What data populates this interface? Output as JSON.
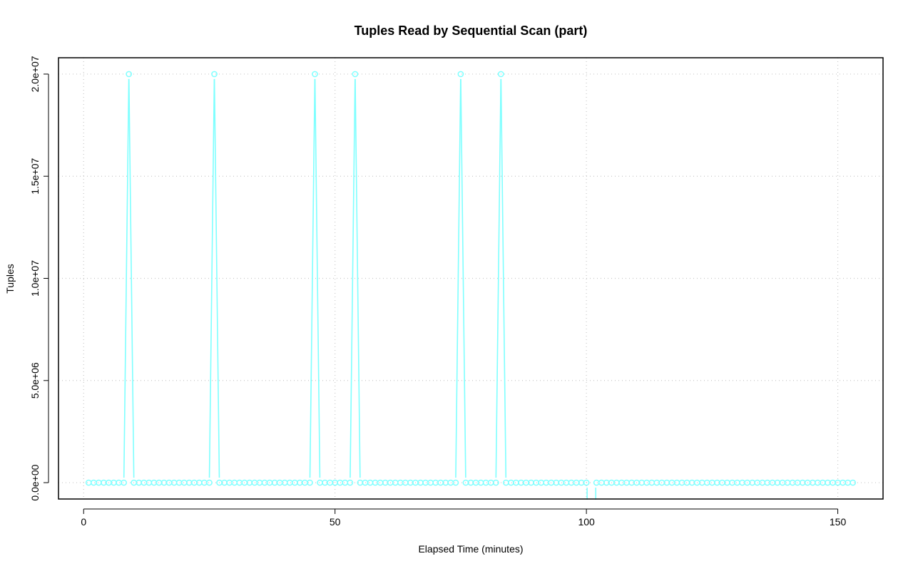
{
  "chart_data": {
    "type": "line",
    "title": "Tuples Read by Sequential Scan (part)",
    "xlabel": "Elapsed Time (minutes)",
    "ylabel": "Tuples",
    "xlim": [
      -5,
      159
    ],
    "ylim": [
      -800000,
      20800000
    ],
    "x_ticks": [
      0,
      50,
      100,
      150
    ],
    "x_tick_labels": [
      "0",
      "50",
      "100",
      "150"
    ],
    "y_ticks": [
      0,
      5000000,
      10000000,
      15000000,
      20000000
    ],
    "y_tick_labels": [
      "0.0e+00",
      "5.0e+06",
      "1.0e+07",
      "1.5e+07",
      "2.0e+07"
    ],
    "grid": true,
    "grid_style": "dotted",
    "series_color": "#7fffff",
    "marker": "open-circle",
    "series": [
      {
        "x_start": 1,
        "x_end": 153,
        "baseline_value": 0,
        "peaks": [
          {
            "x": 9,
            "y": 20000000
          },
          {
            "x": 26,
            "y": 20000000
          },
          {
            "x": 46,
            "y": 20000000
          },
          {
            "x": 54,
            "y": 20000000
          },
          {
            "x": 75,
            "y": 20000000
          },
          {
            "x": 83,
            "y": 20000000
          }
        ],
        "missing_x": [
          101
        ]
      }
    ]
  }
}
